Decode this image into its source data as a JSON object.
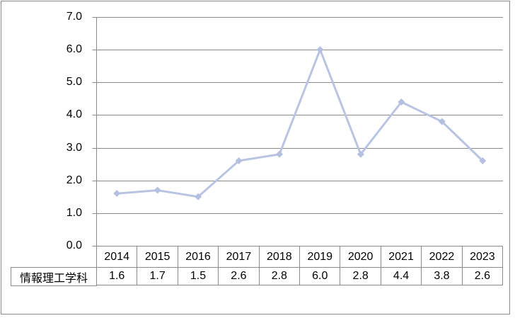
{
  "chart_data": {
    "type": "line",
    "title": "",
    "xlabel": "",
    "ylabel": "",
    "categories": [
      "2014",
      "2015",
      "2016",
      "2017",
      "2018",
      "2019",
      "2020",
      "2021",
      "2022",
      "2023"
    ],
    "series": [
      {
        "name": "情報理工学科",
        "values": [
          1.6,
          1.7,
          1.5,
          2.6,
          2.8,
          6.0,
          2.8,
          4.4,
          3.8,
          2.6
        ],
        "values_display": [
          "1.6",
          "1.7",
          "1.5",
          "2.6",
          "2.8",
          "6.0",
          "2.8",
          "4.4",
          "3.8",
          "2.6"
        ]
      }
    ],
    "ylim": [
      0.0,
      7.0
    ],
    "y_ticks": [
      "0.0",
      "1.0",
      "2.0",
      "3.0",
      "4.0",
      "5.0",
      "6.0",
      "7.0"
    ],
    "grid": "horizontal",
    "legend": "none",
    "marker": "diamond",
    "layout_hint": "data table below category axis"
  },
  "colors": {
    "series_line": "#b8c4e1",
    "series_marker": "#b3c0df",
    "gridline": "#8a8a8a",
    "axis_line": "#8a8a8a",
    "table_border": "#8a8a8a",
    "text": "#000000",
    "chart_frame_border": "#8a8a8a",
    "background": "#ffffff"
  }
}
